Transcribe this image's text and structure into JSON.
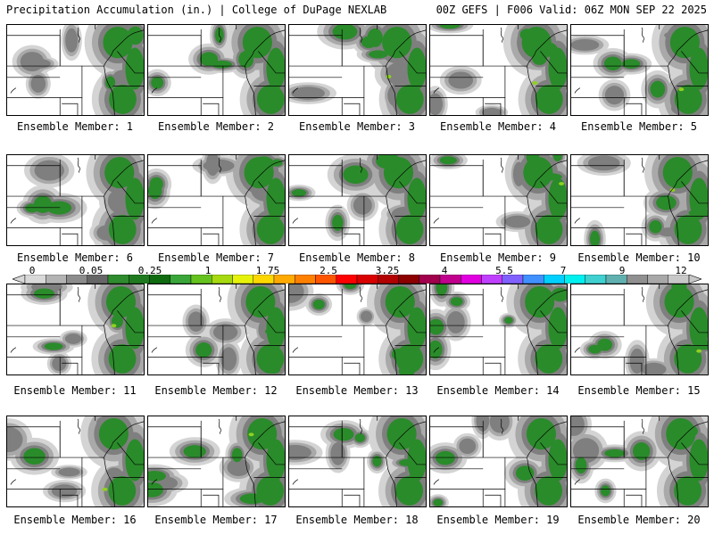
{
  "header": {
    "title": "Precipitation Accumulation (in.) | College of DuPage NEXLAB",
    "valid": "00Z GEFS | F006 Valid: 06Z MON SEP 22 2025"
  },
  "colorbar": {
    "labels": [
      "0",
      "0.05",
      "0.25",
      "1",
      "1.75",
      "2.5",
      "3.25",
      "4",
      "5.5",
      "7",
      "9",
      "12"
    ],
    "colors": [
      "#d9d9d9",
      "#b3b3b3",
      "#8c8c8c",
      "#666666",
      "#2e8b2e",
      "#1f7a1f",
      "#0f6b0f",
      "#3aa63a",
      "#66c21e",
      "#a6d90f",
      "#e6f20a",
      "#ffd700",
      "#ffaa00",
      "#ff8000",
      "#ff5500",
      "#ff0000",
      "#d90000",
      "#b30000",
      "#8c0000",
      "#a0004c",
      "#c0008c",
      "#e000e0",
      "#c040ff",
      "#8060ff",
      "#4090ff",
      "#00d0ff",
      "#00f0f0",
      "#40d0d0",
      "#60b0b0",
      "#909090",
      "#a8a8a8",
      "#c8c8c8"
    ]
  },
  "map": {
    "colors": {
      "light": "#d4d4d4",
      "mid": "#a9a9a9",
      "dark": "#7f7f7f",
      "green": "#2a8b2a",
      "lightgreen": "#8ed11f",
      "border": "#000000"
    }
  },
  "members": [
    {
      "label": "Ensemble Member: 1"
    },
    {
      "label": "Ensemble Member: 2"
    },
    {
      "label": "Ensemble Member: 3"
    },
    {
      "label": "Ensemble Member: 4"
    },
    {
      "label": "Ensemble Member: 5"
    },
    {
      "label": "Ensemble Member: 6"
    },
    {
      "label": "Ensemble Member: 7"
    },
    {
      "label": "Ensemble Member: 8"
    },
    {
      "label": "Ensemble Member: 9"
    },
    {
      "label": "Ensemble Member: 10"
    },
    {
      "label": "Ensemble Member: 11"
    },
    {
      "label": "Ensemble Member: 12"
    },
    {
      "label": "Ensemble Member: 13"
    },
    {
      "label": "Ensemble Member: 14"
    },
    {
      "label": "Ensemble Member: 15"
    },
    {
      "label": "Ensemble Member: 16"
    },
    {
      "label": "Ensemble Member: 17"
    },
    {
      "label": "Ensemble Member: 18"
    },
    {
      "label": "Ensemble Member: 19"
    },
    {
      "label": "Ensemble Member: 20"
    }
  ]
}
